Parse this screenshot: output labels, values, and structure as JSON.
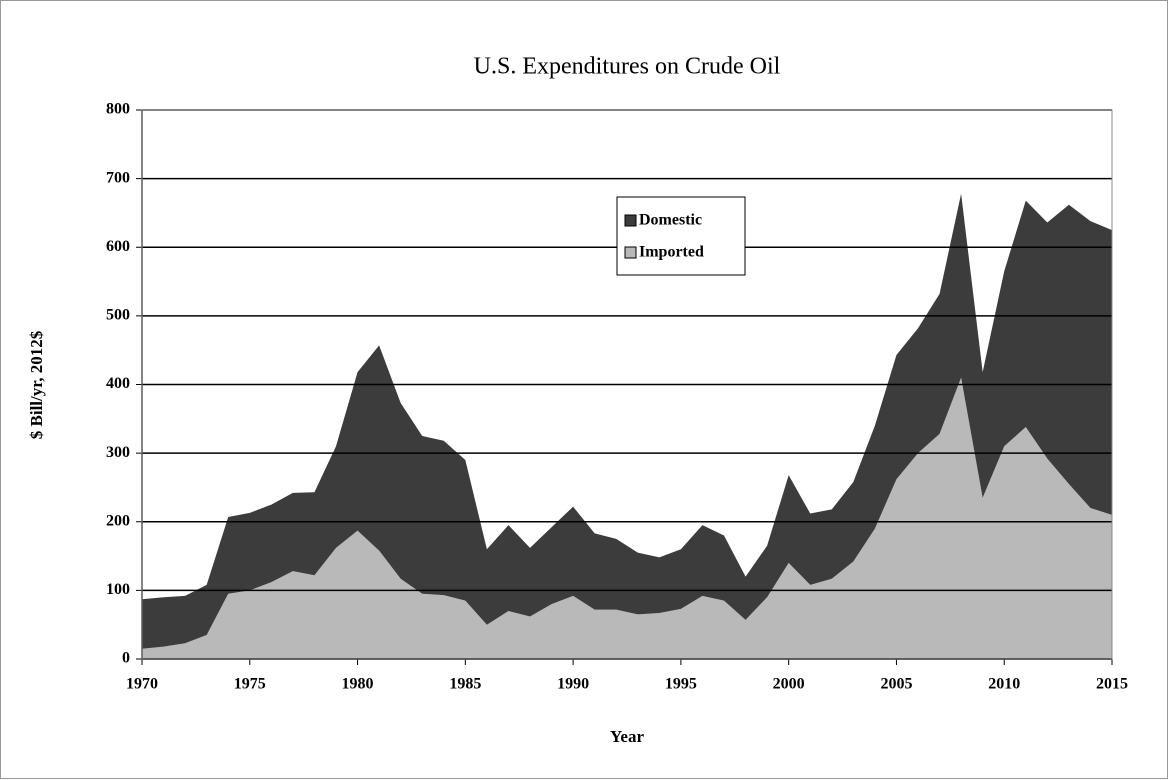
{
  "chart_data": {
    "type": "stacked_area",
    "title": "U.S. Expenditures on Crude Oil",
    "xlabel": "Year",
    "ylabel": "$ Bill/yr, 2012$",
    "x": [
      1970,
      1971,
      1972,
      1973,
      1974,
      1975,
      1976,
      1977,
      1978,
      1979,
      1980,
      1981,
      1982,
      1983,
      1984,
      1985,
      1986,
      1987,
      1988,
      1989,
      1990,
      1991,
      1992,
      1993,
      1994,
      1995,
      1996,
      1997,
      1998,
      1999,
      2000,
      2001,
      2002,
      2003,
      2004,
      2005,
      2006,
      2007,
      2008,
      2009,
      2010,
      2011,
      2012,
      2013,
      2014,
      2015
    ],
    "series": [
      {
        "name": "Imported",
        "color": "#b9b9b9",
        "values": [
          15,
          18,
          23,
          35,
          95,
          100,
          112,
          128,
          122,
          162,
          187,
          158,
          117,
          95,
          93,
          85,
          50,
          70,
          62,
          80,
          92,
          72,
          72,
          65,
          67,
          73,
          92,
          85,
          57,
          90,
          140,
          108,
          117,
          142,
          190,
          262,
          300,
          328,
          410,
          235,
          310,
          338,
          292,
          255,
          220,
          210
        ]
      },
      {
        "name": "Domestic",
        "color": "#3c3c3c",
        "values": [
          72,
          72,
          69,
          73,
          112,
          113,
          113,
          114,
          121,
          148,
          231,
          299,
          256,
          230,
          225,
          205,
          110,
          125,
          100,
          112,
          130,
          111,
          103,
          90,
          81,
          87,
          103,
          95,
          63,
          75,
          128,
          104,
          101,
          116,
          150,
          181,
          182,
          204,
          268,
          183,
          255,
          330,
          344,
          407,
          418,
          415
        ]
      }
    ],
    "xlim": [
      1970,
      2015
    ],
    "xticks": [
      1970,
      1975,
      1980,
      1985,
      1990,
      1995,
      2000,
      2005,
      2010,
      2015
    ],
    "ylim": [
      0,
      800
    ],
    "yticks": [
      0,
      100,
      200,
      300,
      400,
      500,
      600,
      700,
      800
    ],
    "grid": true,
    "legend": "top-center"
  }
}
